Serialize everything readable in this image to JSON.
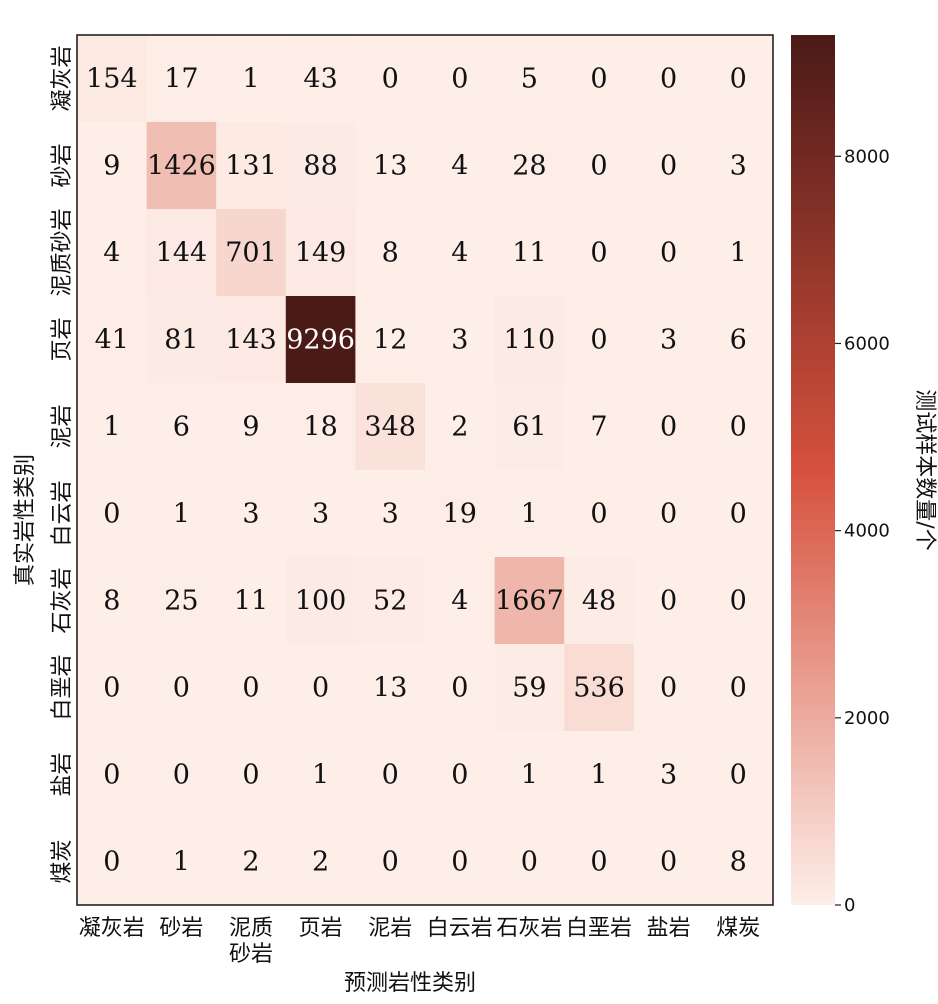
{
  "chart_data": {
    "type": "heatmap",
    "xlabel": "预测岩性类别",
    "ylabel": "真实岩性类别",
    "x_categories": [
      "凝灰岩",
      "砂岩",
      "泥质砂岩",
      "页岩",
      "泥岩",
      "白云岩",
      "石灰岩",
      "白垩岩",
      "盐岩",
      "煤炭"
    ],
    "y_categories": [
      "凝灰岩",
      "砂岩",
      "泥质砂岩",
      "页岩",
      "泥岩",
      "白云岩",
      "石灰岩",
      "白垩岩",
      "盐岩",
      "煤炭"
    ],
    "x_tick_lines": [
      [
        "凝灰岩"
      ],
      [
        "砂岩"
      ],
      [
        "泥质",
        "砂岩"
      ],
      [
        "页岩"
      ],
      [
        "泥岩"
      ],
      [
        "白云岩"
      ],
      [
        "石灰岩"
      ],
      [
        "白垩岩"
      ],
      [
        "盐岩"
      ],
      [
        "煤炭"
      ]
    ],
    "values": [
      [
        154,
        17,
        1,
        43,
        0,
        0,
        5,
        0,
        0,
        0
      ],
      [
        9,
        1426,
        131,
        88,
        13,
        4,
        28,
        0,
        0,
        3
      ],
      [
        4,
        144,
        701,
        149,
        8,
        4,
        11,
        0,
        0,
        1
      ],
      [
        41,
        81,
        143,
        9296,
        12,
        3,
        110,
        0,
        3,
        6
      ],
      [
        1,
        6,
        9,
        18,
        348,
        2,
        61,
        7,
        0,
        0
      ],
      [
        0,
        1,
        3,
        3,
        3,
        19,
        1,
        0,
        0,
        0
      ],
      [
        8,
        25,
        11,
        100,
        52,
        4,
        1667,
        48,
        0,
        0
      ],
      [
        0,
        0,
        0,
        0,
        13,
        0,
        59,
        536,
        0,
        0
      ],
      [
        0,
        0,
        0,
        1,
        0,
        0,
        1,
        1,
        3,
        0
      ],
      [
        0,
        1,
        2,
        2,
        0,
        0,
        0,
        0,
        0,
        8
      ]
    ],
    "colorbar": {
      "label": "测试样本数量/个",
      "min": 0,
      "max": 9296,
      "ticks": [
        0,
        2000,
        4000,
        6000,
        8000
      ]
    },
    "colors": {
      "low": "#fdeee8",
      "mid": "#d6513d",
      "high": "#4a1a17"
    }
  }
}
